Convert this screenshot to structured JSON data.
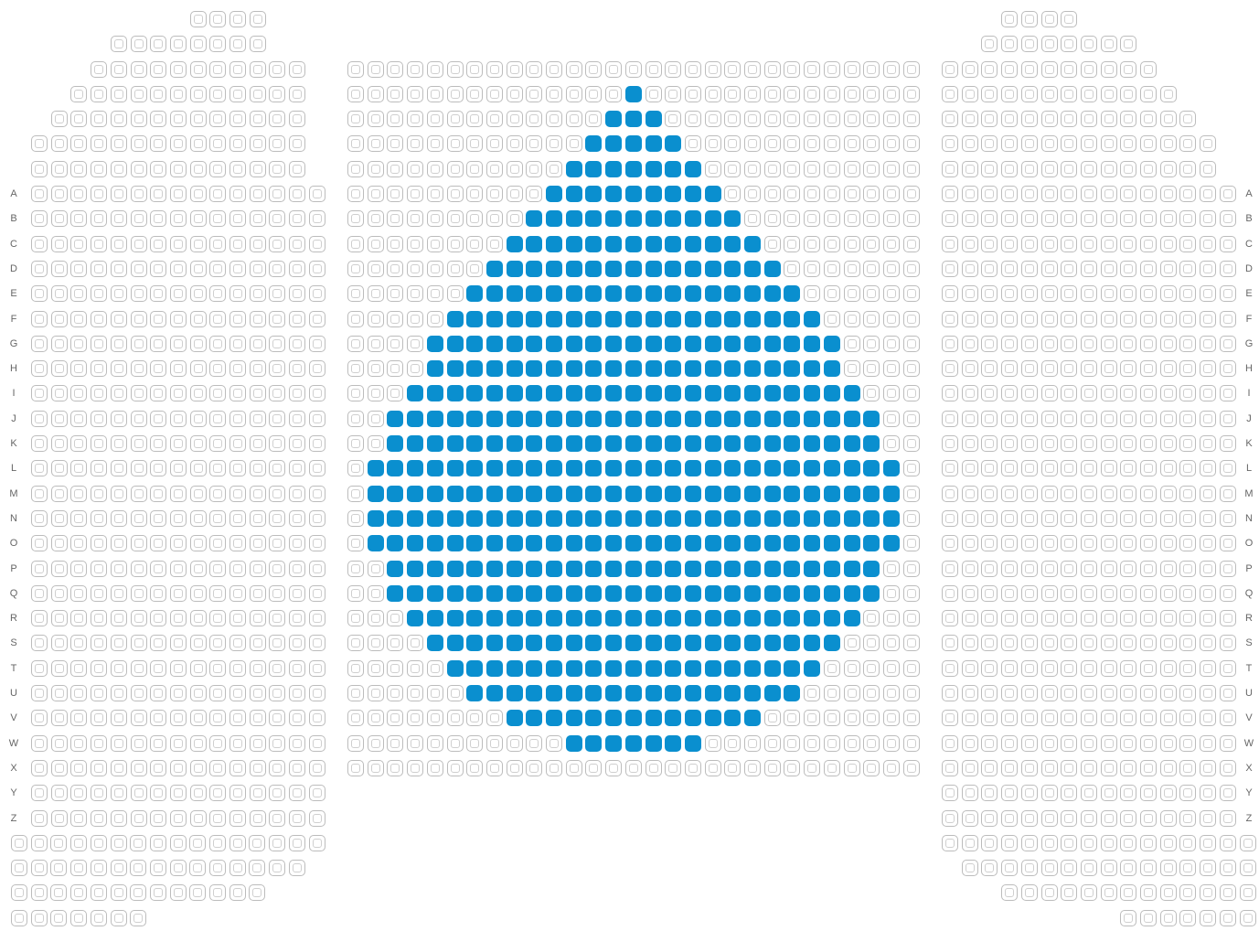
{
  "colors": {
    "selected": "#0a8fcf",
    "seat_outline": "#bcbcbc",
    "label": "#666666"
  },
  "row_labels": [
    "A",
    "B",
    "C",
    "D",
    "E",
    "F",
    "G",
    "H",
    "I",
    "J",
    "K",
    "L",
    "M",
    "N",
    "O",
    "P",
    "Q",
    "R",
    "S",
    "T",
    "U",
    "V",
    "W",
    "X",
    "Y",
    "Z"
  ],
  "seat_state": {
    "available": "available",
    "selected": "selected"
  },
  "selection": {
    "description": "Selected seats form a droplet shape in the center section",
    "rows": [
      {
        "row": "pre-2",
        "selected_seats": 1
      },
      {
        "row": "pre-1",
        "selected_seats": 3
      },
      {
        "row": "pre-0",
        "selected_seats": 5
      },
      {
        "row": "pre-A",
        "selected_seats": 7
      },
      {
        "row": "A",
        "selected_seats": 9
      },
      {
        "row": "B",
        "selected_seats": 11
      },
      {
        "row": "C",
        "selected_seats": 13
      },
      {
        "row": "D",
        "selected_seats": 15
      },
      {
        "row": "E",
        "selected_seats": 17
      },
      {
        "row": "F",
        "selected_seats": 19
      },
      {
        "row": "G",
        "selected_seats": 21
      },
      {
        "row": "H",
        "selected_seats": 21
      },
      {
        "row": "I",
        "selected_seats": 23
      },
      {
        "row": "J",
        "selected_seats": 25
      },
      {
        "row": "K",
        "selected_seats": 25
      },
      {
        "row": "L",
        "selected_seats": 27
      },
      {
        "row": "M",
        "selected_seats": 27
      },
      {
        "row": "N",
        "selected_seats": 27
      },
      {
        "row": "O",
        "selected_seats": 27
      },
      {
        "row": "P",
        "selected_seats": 25
      },
      {
        "row": "Q",
        "selected_seats": 25
      },
      {
        "row": "R",
        "selected_seats": 23
      },
      {
        "row": "S",
        "selected_seats": 21
      },
      {
        "row": "T",
        "selected_seats": 19
      },
      {
        "row": "U",
        "selected_seats": 17
      },
      {
        "row": "V",
        "selected_seats": 13
      },
      {
        "row": "W",
        "selected_seats": 7
      }
    ]
  }
}
